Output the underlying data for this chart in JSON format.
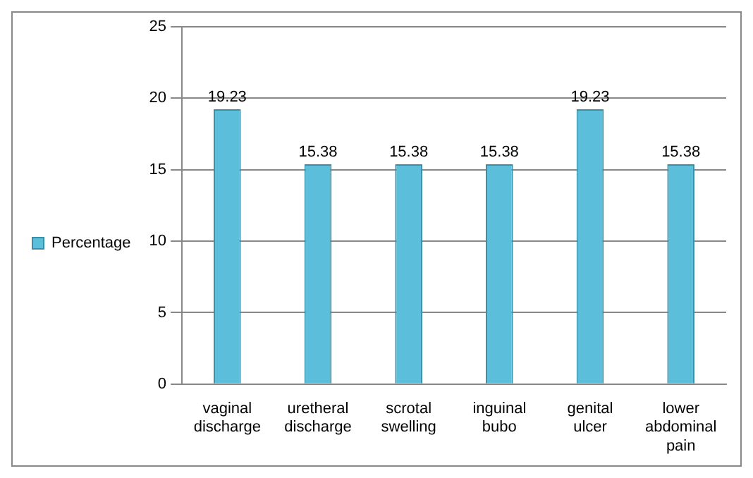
{
  "chart_data": {
    "type": "bar",
    "categories": [
      "vaginal discharge",
      "uretheral discharge",
      "scrotal swelling",
      "inguinal bubo",
      "genital ulcer",
      "lower abdominal pain"
    ],
    "series": [
      {
        "name": "Percentage",
        "color": "#5bbfdc",
        "values": [
          19.23,
          15.38,
          15.38,
          15.38,
          19.23,
          15.38
        ]
      }
    ],
    "ylim": [
      0,
      25
    ],
    "yticks": [
      0,
      5,
      10,
      15,
      20,
      25
    ],
    "grid": "y",
    "legend": "left",
    "data_labels": true
  }
}
